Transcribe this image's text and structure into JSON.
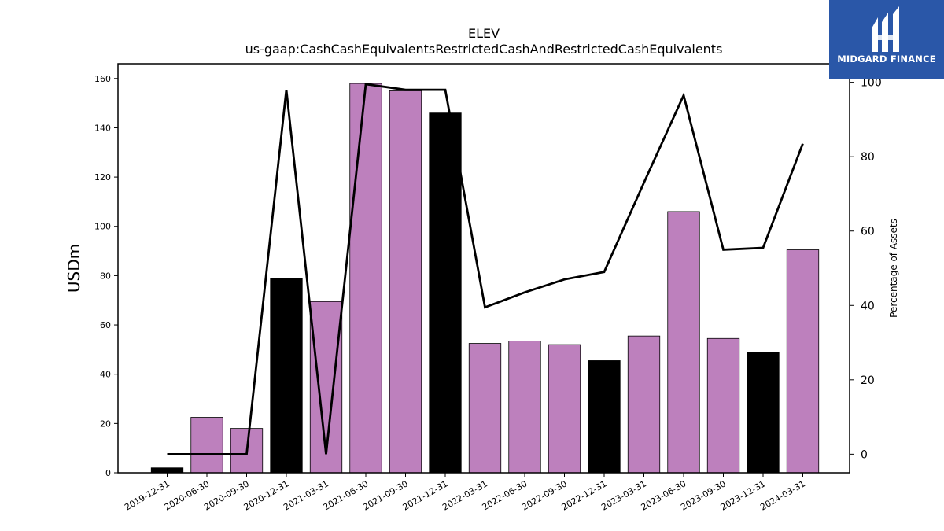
{
  "chart_data": {
    "type": "bar",
    "title": "ELEV",
    "subtitle": "us-gaap:CashCashEquivalentsRestrictedCashAndRestrictedCashEquivalents",
    "ylabel": "USDm",
    "y2label": "Percentage of Assets",
    "ylim": [
      0,
      166
    ],
    "y2lim": [
      -5,
      105
    ],
    "yticks": [
      0,
      20,
      40,
      60,
      80,
      100,
      120,
      140,
      160
    ],
    "y2ticks": [
      0,
      20,
      40,
      60,
      80,
      100
    ],
    "categories": [
      "2019-12-31",
      "2020-06-30",
      "2020-09-30",
      "2020-12-31",
      "2021-03-31",
      "2021-06-30",
      "2021-09-30",
      "2021-12-31",
      "2022-03-31",
      "2022-06-30",
      "2022-09-30",
      "2022-12-31",
      "2023-03-31",
      "2023-06-30",
      "2023-09-30",
      "2023-12-31",
      "2024-03-31"
    ],
    "values": [
      2,
      22.5,
      18,
      79,
      69.5,
      158,
      155,
      146,
      52.5,
      53.5,
      52,
      45.5,
      55.5,
      106,
      54.5,
      49,
      90.5
    ],
    "annual": [
      true,
      false,
      false,
      true,
      false,
      false,
      false,
      true,
      false,
      false,
      false,
      true,
      false,
      false,
      false,
      true,
      false
    ],
    "line_values": [
      0,
      0,
      0,
      98,
      0,
      99.5,
      98,
      98,
      39.5,
      43.5,
      47,
      49,
      73,
      96.5,
      55,
      55.5,
      83.5
    ],
    "colors": {
      "annual_bar": "#000000",
      "quarter_bar": "#bd80bd",
      "line": "#000000",
      "logo_bg": "#2a57a8"
    }
  },
  "logo": {
    "text": "MIDGARD FINANCE",
    "icon": "midgard-logo-icon"
  }
}
